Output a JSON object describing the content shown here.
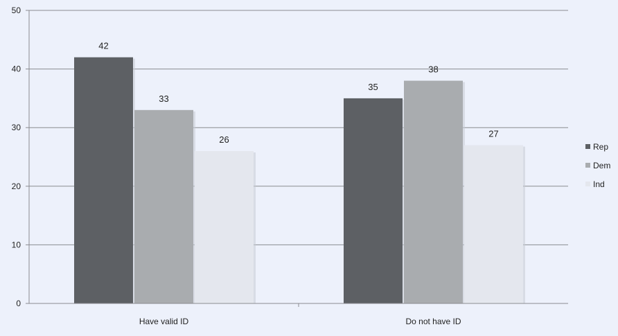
{
  "chart_data": {
    "type": "bar",
    "title": "",
    "xlabel": "",
    "ylabel": "",
    "categories": [
      "Have valid ID",
      "Do not have ID"
    ],
    "series": [
      {
        "name": "Rep",
        "values": [
          42,
          35
        ],
        "color": "#5d6064"
      },
      {
        "name": "Dem",
        "values": [
          33,
          38
        ],
        "color": "#a9acaf"
      },
      {
        "name": "Ind",
        "values": [
          26,
          27
        ],
        "color": "#e4e7ee"
      }
    ],
    "ylim": [
      0,
      50
    ],
    "yticks": [
      0,
      10,
      20,
      30,
      40,
      50
    ],
    "grid": true,
    "legend": "right",
    "data_labels": true
  }
}
